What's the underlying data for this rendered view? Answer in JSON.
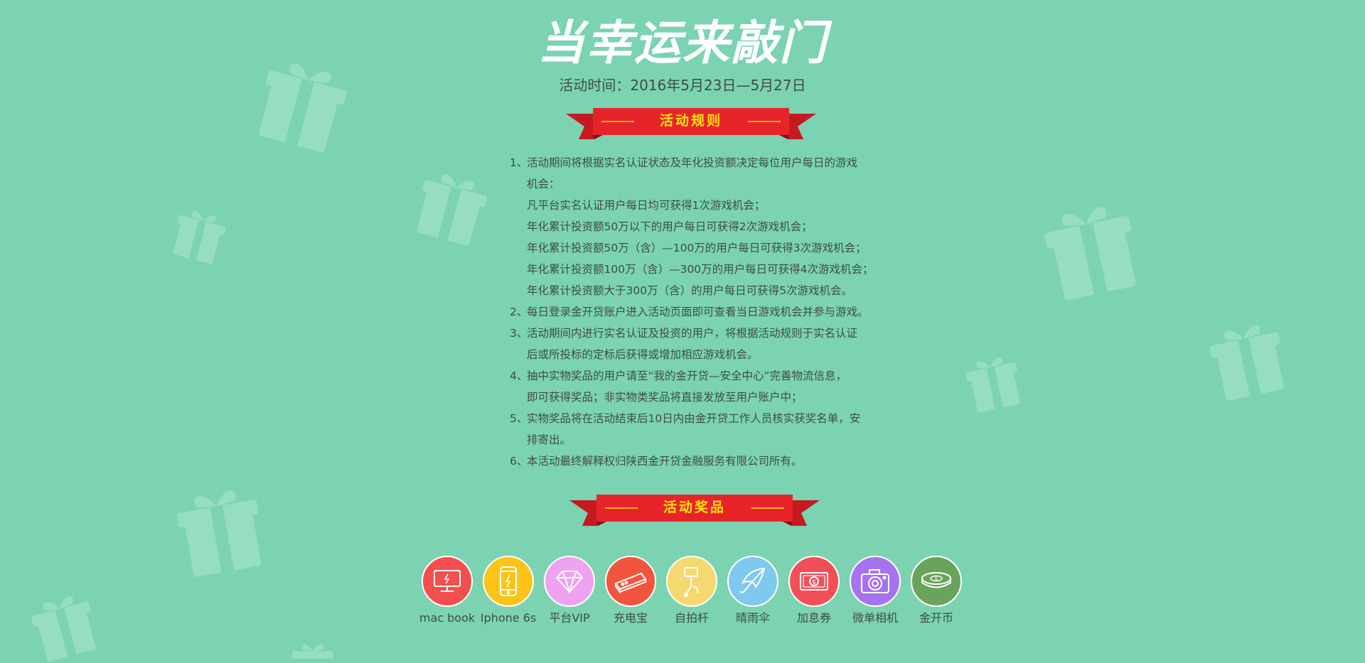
{
  "page": {
    "title": "当幸运来敲门",
    "date_line": "活动时间：2016年5月23日—5月27日",
    "background_color": "#7bd3b1",
    "accent_red": "#e8242b",
    "accent_yellow": "#ffe600"
  },
  "rules_section": {
    "heading": "活动规则",
    "items": [
      {
        "num": "1、",
        "lines": [
          "活动期间将根据实名认证状态及年化投资额决定每位用户每日的游戏",
          "机会：",
          "凡平台实名认证用户每日均可获得1次游戏机会；",
          "年化累计投资额50万以下的用户每日可获得2次游戏机会；",
          "年化累计投资额50万（含）—100万的用户每日可获得3次游戏机会；",
          "年化累计投资额100万（含）—300万的用户每日可获得4次游戏机会；",
          "年化累计投资额大于300万（含）的用户每日可获得5次游戏机会。"
        ]
      },
      {
        "num": "2、",
        "lines": [
          "每日登录金开贷账户进入活动页面即可查看当日游戏机会并参与游戏。"
        ]
      },
      {
        "num": "3、",
        "lines": [
          "活动期间内进行实名认证及投资的用户，将根据活动规则于实名认证",
          "后或所投标的定标后获得或增加相应游戏机会。"
        ]
      },
      {
        "num": "4、",
        "lines": [
          "抽中实物奖品的用户请至“我的金开贷—安全中心”完善物流信息，",
          "即可获得奖品；非实物类奖品将直接发放至用户账户中；"
        ]
      },
      {
        "num": "5、",
        "lines": [
          "实物奖品将在活动结束后10日内由金开贷工作人员核实获奖名单，安",
          "排寄出。"
        ]
      },
      {
        "num": "6、",
        "lines": [
          "本活动最终解释权归陕西金开贷金融服务有限公司所有。"
        ]
      }
    ]
  },
  "prizes_section": {
    "heading": "活动奖品",
    "items": [
      {
        "label": "mac book",
        "icon": "laptop-icon",
        "color": "#f24f4f"
      },
      {
        "label": "Iphone 6s",
        "icon": "phone-icon",
        "color": "#fcc419"
      },
      {
        "label": "平台VIP",
        "icon": "diamond-icon",
        "color": "#eea2f0"
      },
      {
        "label": "充电宝",
        "icon": "power-bank-icon",
        "color": "#f2553e"
      },
      {
        "label": "自拍杆",
        "icon": "selfie-stick-icon",
        "color": "#f5d870"
      },
      {
        "label": "晴雨伞",
        "icon": "umbrella-icon",
        "color": "#7fc8ee"
      },
      {
        "label": "加息券",
        "icon": "coupon-icon",
        "color": "#f24f58"
      },
      {
        "label": "微单相机",
        "icon": "camera-icon",
        "color": "#a673ee"
      },
      {
        "label": "金开币",
        "icon": "coin-icon",
        "color": "#6aa35c"
      }
    ]
  }
}
